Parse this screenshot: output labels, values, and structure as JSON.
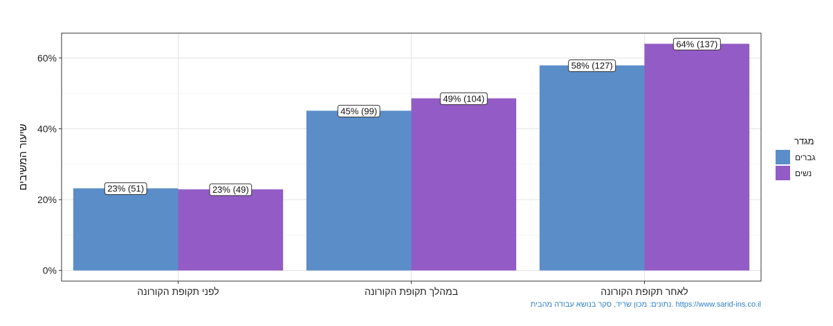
{
  "chart_data": {
    "type": "bar",
    "categories": [
      "לפני תקופת הקורונה",
      "במהלך תקופת הקורונה",
      "לאחר תקופת הקורונה"
    ],
    "series": [
      {
        "name": "גברים",
        "values": [
          23.2,
          45.1,
          57.9
        ],
        "labels": [
          "23% (51)",
          "45% (99)",
          "58% (127)"
        ]
      },
      {
        "name": "נשים",
        "values": [
          22.9,
          48.6,
          64.0
        ],
        "labels": [
          "23% (49)",
          "49% (104)",
          "64% (137)"
        ]
      }
    ],
    "ylabel": "שיעור המשיבים",
    "xlabel": "",
    "ylim": [
      -3,
      67
    ],
    "yticks": [
      0,
      20,
      40,
      60
    ],
    "ytick_labels": [
      "0%",
      "20%",
      "40%",
      "60%"
    ],
    "grid": true,
    "legend": {
      "title": "מגדר",
      "position": "right"
    },
    "colors": [
      "#5b8dc8",
      "#935bc6"
    ],
    "caption": "נתונים: מכון שריד, סקר בנושא עבודה מהבית. https://www.sarid-ins.co.il"
  }
}
